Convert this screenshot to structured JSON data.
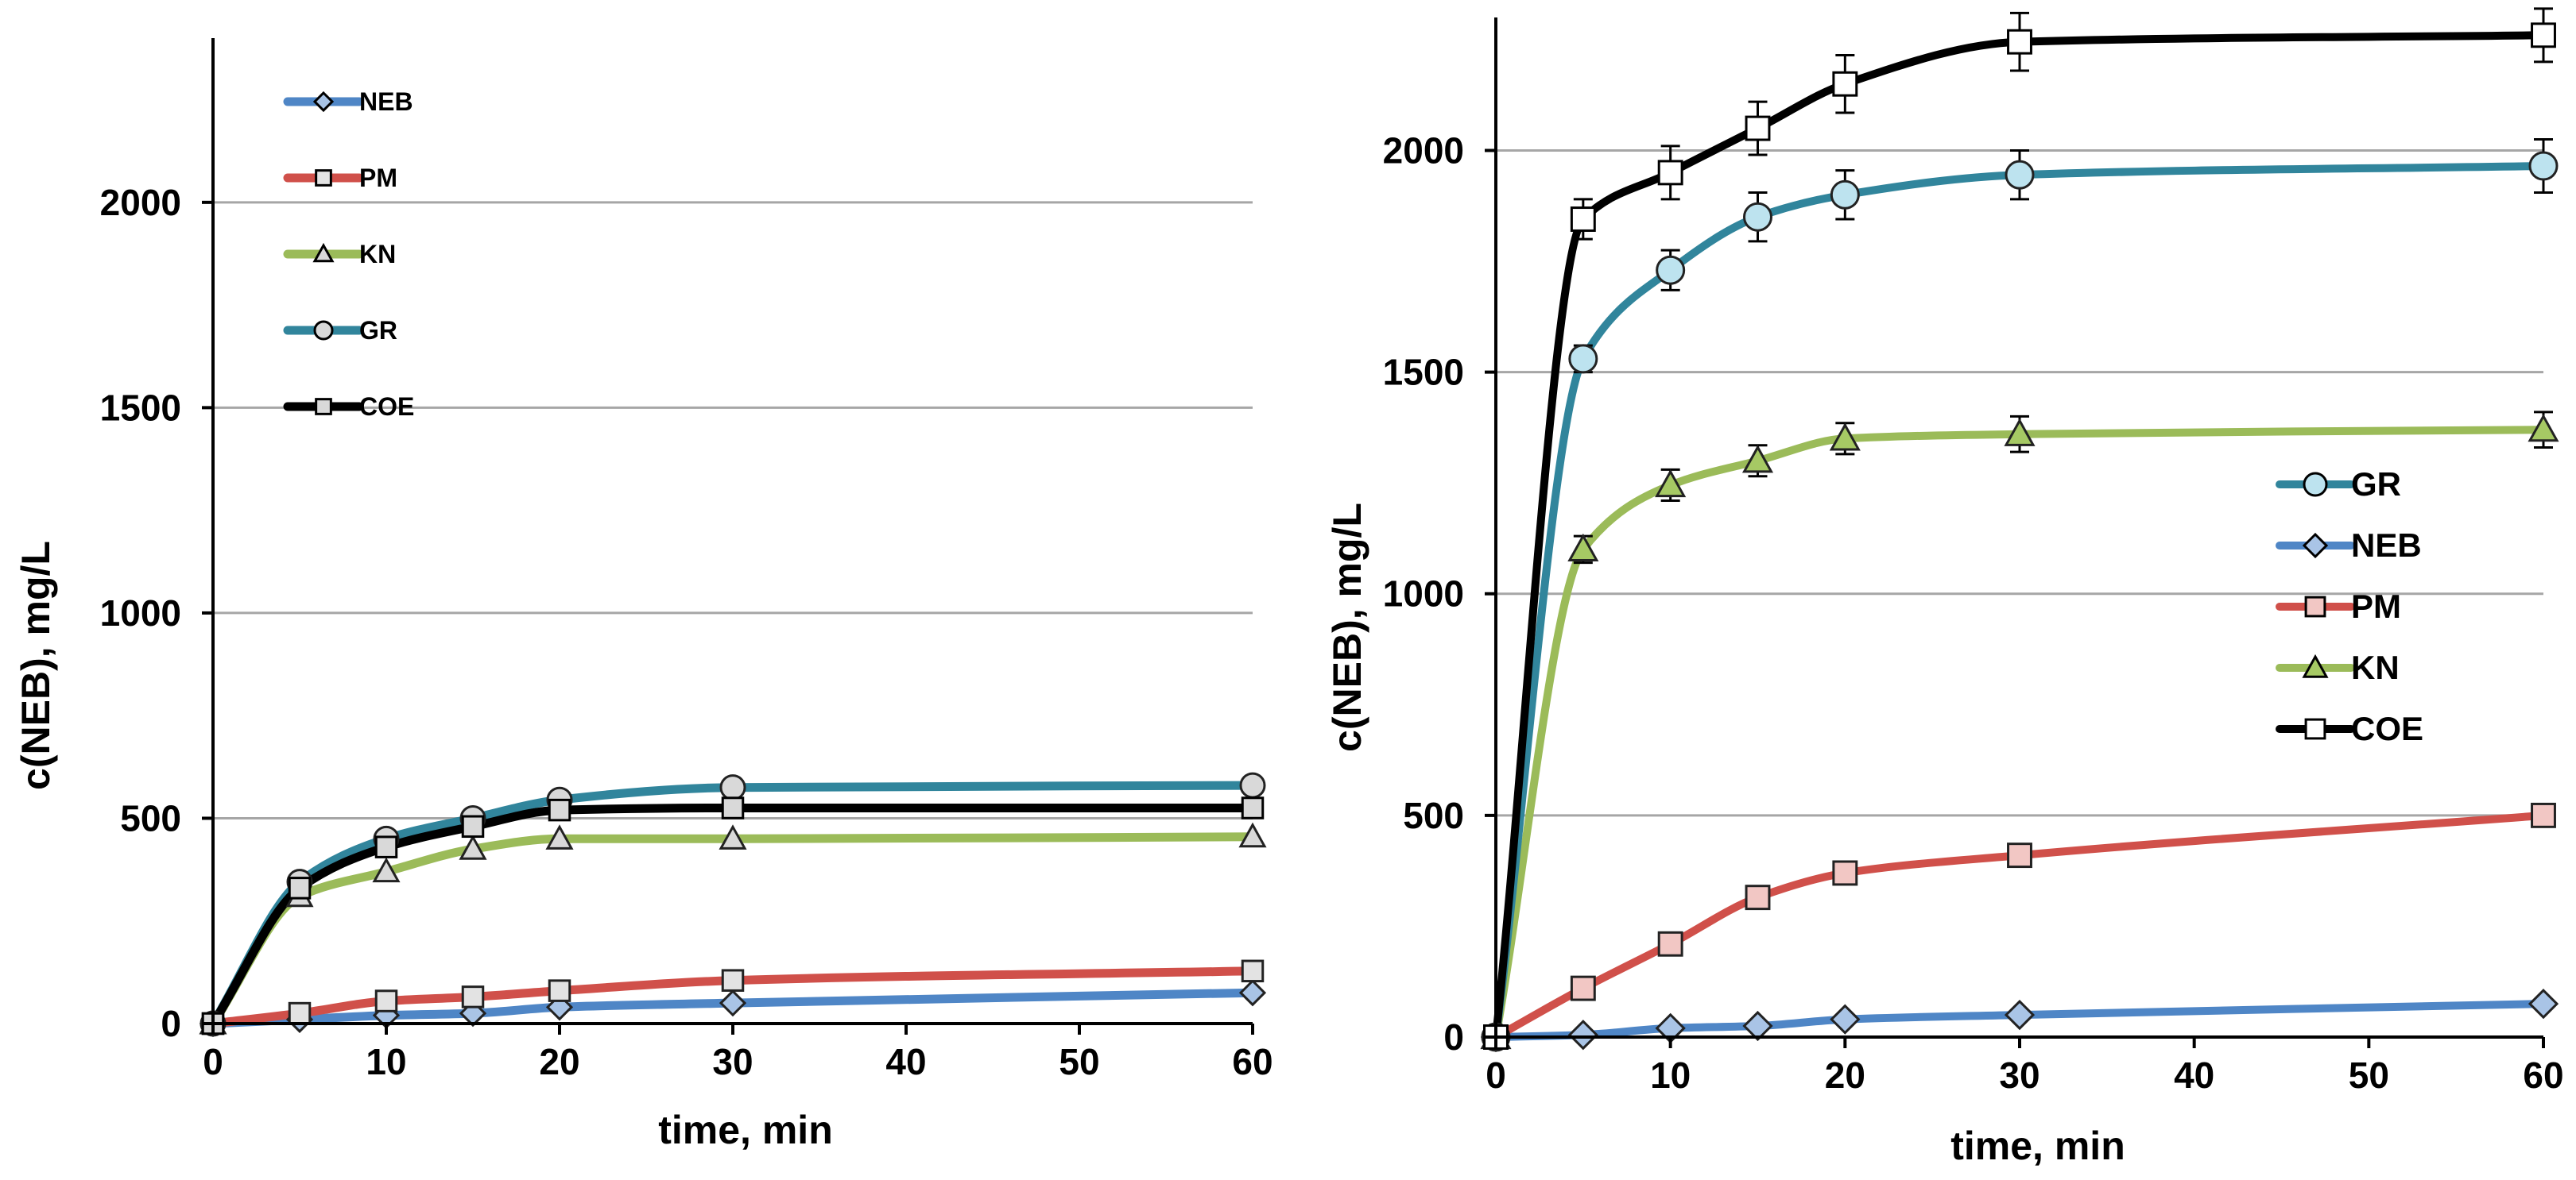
{
  "chart_data": [
    {
      "type": "line",
      "title": "",
      "xlabel": "time, min",
      "ylabel": "c(NEB), mg/L",
      "xlim": [
        0,
        60
      ],
      "ylim": [
        0,
        2400
      ],
      "xticks": [
        0,
        10,
        20,
        30,
        40,
        50,
        60
      ],
      "yticks": [
        0,
        500,
        1000,
        1500,
        2000
      ],
      "grid": true,
      "legend_position": "top-left",
      "legend_order": [
        "NEB",
        "PM",
        "KN",
        "GR",
        "COE"
      ],
      "series": [
        {
          "name": "NEB",
          "color": "#4f86c6",
          "marker": "diamond",
          "x": [
            0,
            5,
            10,
            15,
            20,
            30,
            60
          ],
          "y": [
            0,
            10,
            20,
            25,
            40,
            50,
            75
          ]
        },
        {
          "name": "PM",
          "color": "#d0504a",
          "marker": "square",
          "x": [
            0,
            5,
            10,
            15,
            20,
            30,
            60
          ],
          "y": [
            0,
            25,
            55,
            65,
            80,
            105,
            128
          ]
        },
        {
          "name": "KN",
          "color": "#9bbb59",
          "marker": "triangle",
          "x": [
            0,
            5,
            10,
            15,
            20,
            30,
            60
          ],
          "y": [
            0,
            310,
            370,
            425,
            450,
            450,
            455
          ]
        },
        {
          "name": "GR",
          "color": "#31859c",
          "marker": "circle",
          "x": [
            0,
            5,
            10,
            15,
            20,
            30,
            60
          ],
          "y": [
            0,
            345,
            450,
            500,
            545,
            575,
            580
          ]
        },
        {
          "name": "COE",
          "color": "#000000",
          "marker": "square",
          "x": [
            0,
            5,
            10,
            15,
            20,
            30,
            60
          ],
          "y": [
            0,
            330,
            430,
            480,
            520,
            525,
            525
          ]
        }
      ]
    },
    {
      "type": "line",
      "title": "",
      "xlabel": "time, min",
      "ylabel": "c(NEB), mg/L",
      "xlim": [
        0,
        60
      ],
      "ylim": [
        0,
        2300
      ],
      "xticks": [
        0,
        10,
        20,
        30,
        40,
        50,
        60
      ],
      "yticks": [
        0,
        500,
        1000,
        1500,
        2000
      ],
      "grid": true,
      "legend_position": "right",
      "legend_order": [
        "GR",
        "NEB",
        "PM",
        "KN",
        "COE"
      ],
      "series": [
        {
          "name": "NEB",
          "color": "#4f86c6",
          "marker": "diamond",
          "x": [
            0,
            5,
            10,
            15,
            20,
            30,
            60
          ],
          "y": [
            0,
            5,
            20,
            25,
            40,
            50,
            75
          ],
          "err": [
            0,
            0,
            0,
            0,
            0,
            0,
            0
          ]
        },
        {
          "name": "PM",
          "color": "#d0504a",
          "marker": "square",
          "x": [
            0,
            5,
            10,
            15,
            20,
            30,
            60
          ],
          "y": [
            0,
            110,
            210,
            315,
            370,
            410,
            500
          ],
          "err": [
            0,
            0,
            0,
            0,
            0,
            0,
            0
          ]
        },
        {
          "name": "KN",
          "color": "#9bbb59",
          "marker": "triangle",
          "x": [
            0,
            5,
            10,
            15,
            20,
            30,
            60
          ],
          "y": [
            0,
            1100,
            1245,
            1300,
            1350,
            1360,
            1370
          ],
          "err": [
            0,
            30,
            35,
            35,
            35,
            40,
            40
          ]
        },
        {
          "name": "GR",
          "color": "#31859c",
          "marker": "circle",
          "x": [
            0,
            5,
            10,
            15,
            20,
            30,
            60
          ],
          "y": [
            0,
            1530,
            1730,
            1850,
            1900,
            1945,
            1965
          ],
          "err": [
            0,
            30,
            45,
            55,
            55,
            55,
            60
          ]
        },
        {
          "name": "COE",
          "color": "#000000",
          "marker": "square",
          "x": [
            0,
            5,
            10,
            15,
            20,
            30,
            60
          ],
          "y": [
            0,
            1845,
            1950,
            2050,
            2150,
            2245,
            2260
          ],
          "err": [
            0,
            45,
            60,
            60,
            65,
            65,
            60
          ]
        }
      ]
    }
  ]
}
